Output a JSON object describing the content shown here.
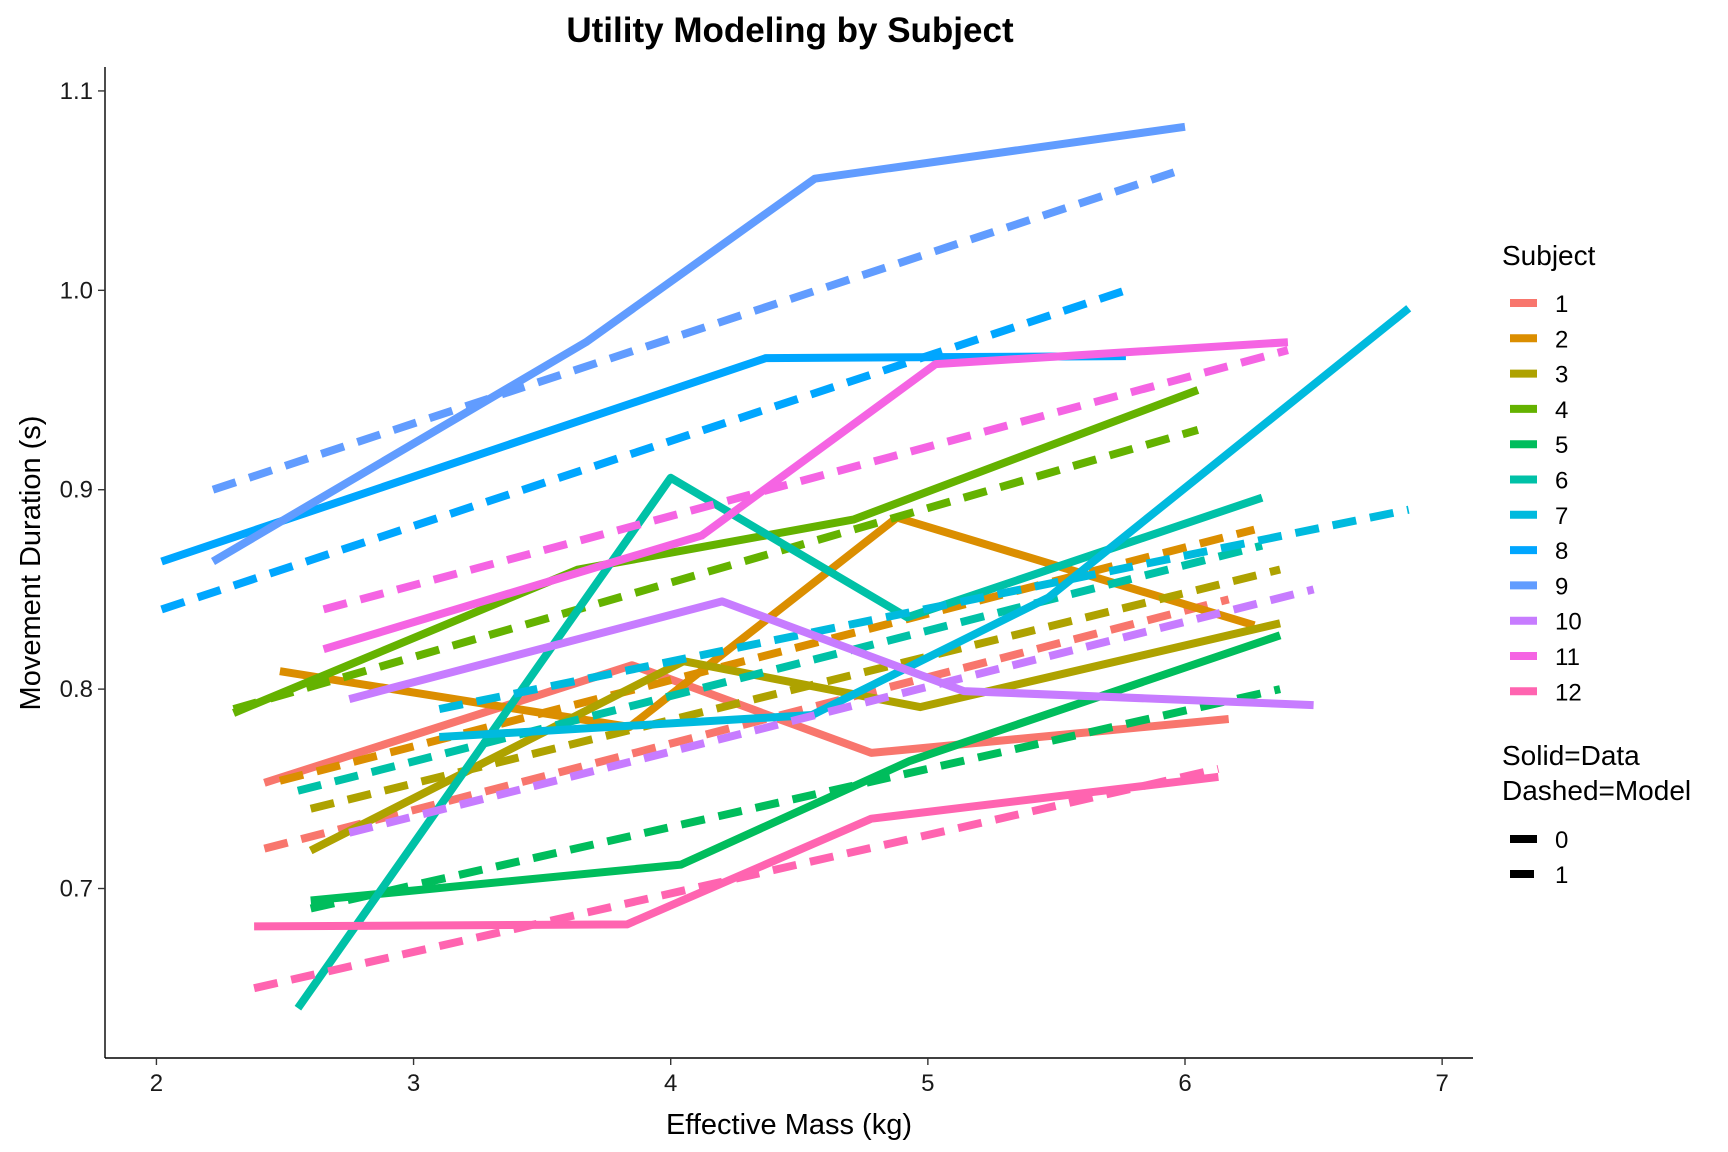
{
  "chart_data": {
    "type": "line",
    "title": "Utility Modeling by Subject",
    "xlabel": "Effective Mass (kg)",
    "ylabel": "Movement Duration (s)",
    "xlim": [
      1.8,
      7.12
    ],
    "ylim": [
      0.615,
      1.112
    ],
    "x_ticks": [
      2,
      3,
      4,
      5,
      6,
      7
    ],
    "y_ticks": [
      0.7,
      0.8,
      0.9,
      1.0,
      1.1
    ],
    "x_tick_labels": [
      "2",
      "3",
      "4",
      "5",
      "6",
      "7"
    ],
    "y_tick_labels": [
      "0.7",
      "0.8",
      "0.9",
      "1.0",
      "1.1"
    ],
    "grid": false,
    "legend": {
      "position": "right",
      "color_title": "Subject",
      "linetype_title_line1": "Solid=Data",
      "linetype_title_line2": "Dashed=Model",
      "linetype_labels": [
        "0",
        "1"
      ]
    },
    "series": [
      {
        "name": "1",
        "color": "#F8766D",
        "data": {
          "x": [
            2.42,
            3.85,
            4.78,
            6.17
          ],
          "y": [
            0.753,
            0.812,
            0.768,
            0.785
          ]
        },
        "model": {
          "x": [
            2.42,
            6.17
          ],
          "y": [
            0.72,
            0.845
          ]
        }
      },
      {
        "name": "2",
        "color": "#DB8E00",
        "data": {
          "x": [
            2.48,
            3.84,
            4.88,
            6.27
          ],
          "y": [
            0.809,
            0.781,
            0.886,
            0.832
          ]
        },
        "model": {
          "x": [
            2.48,
            6.27
          ],
          "y": [
            0.754,
            0.88
          ]
        }
      },
      {
        "name": "3",
        "color": "#AEA200",
        "data": {
          "x": [
            2.6,
            4.05,
            4.97,
            6.37
          ],
          "y": [
            0.719,
            0.814,
            0.791,
            0.833
          ]
        },
        "model": {
          "x": [
            2.6,
            6.37
          ],
          "y": [
            0.74,
            0.86
          ]
        }
      },
      {
        "name": "4",
        "color": "#64B200",
        "data": {
          "x": [
            2.3,
            3.64,
            4.71,
            6.05
          ],
          "y": [
            0.788,
            0.86,
            0.885,
            0.95
          ]
        },
        "model": {
          "x": [
            2.3,
            6.05
          ],
          "y": [
            0.79,
            0.93
          ]
        }
      },
      {
        "name": "5",
        "color": "#00BD5C",
        "data": {
          "x": [
            2.6,
            4.04,
            4.93,
            6.37
          ],
          "y": [
            0.694,
            0.712,
            0.764,
            0.827
          ]
        },
        "model": {
          "x": [
            2.6,
            6.37
          ],
          "y": [
            0.69,
            0.8
          ]
        }
      },
      {
        "name": "6",
        "color": "#00C1A7",
        "data": {
          "x": [
            2.55,
            4.0,
            4.92,
            6.3
          ],
          "y": [
            0.64,
            0.906,
            0.836,
            0.896
          ]
        },
        "model": {
          "x": [
            2.55,
            6.3
          ],
          "y": [
            0.749,
            0.872
          ]
        }
      },
      {
        "name": "7",
        "color": "#00BADE",
        "data": {
          "x": [
            3.1,
            4.55,
            5.47,
            6.87
          ],
          "y": [
            0.776,
            0.787,
            0.846,
            0.991
          ]
        },
        "model": {
          "x": [
            3.1,
            6.87
          ],
          "y": [
            0.79,
            0.89
          ]
        }
      },
      {
        "name": "8",
        "color": "#00A6FF",
        "data": {
          "x": [
            2.02,
            4.37,
            5.77
          ],
          "y": [
            0.864,
            0.966,
            0.967
          ]
        },
        "model": {
          "x": [
            2.02,
            5.77
          ],
          "y": [
            0.84,
            1.0
          ]
        }
      },
      {
        "name": "9",
        "color": "#619CFF",
        "data": {
          "x": [
            2.22,
            3.67,
            4.56,
            6.0
          ],
          "y": [
            0.864,
            0.974,
            1.056,
            1.082
          ]
        },
        "model": {
          "x": [
            2.22,
            6.0
          ],
          "y": [
            0.9,
            1.061
          ]
        }
      },
      {
        "name": "10",
        "color": "#C77CFF",
        "data": {
          "x": [
            2.75,
            4.2,
            5.14,
            6.5
          ],
          "y": [
            0.795,
            0.844,
            0.799,
            0.792
          ]
        },
        "model": {
          "x": [
            2.75,
            6.5
          ],
          "y": [
            0.728,
            0.85
          ]
        }
      },
      {
        "name": "11",
        "color": "#F564E3",
        "data": {
          "x": [
            2.65,
            4.12,
            5.03,
            6.4
          ],
          "y": [
            0.82,
            0.877,
            0.963,
            0.974
          ]
        },
        "model": {
          "x": [
            2.65,
            6.4
          ],
          "y": [
            0.84,
            0.97
          ]
        }
      },
      {
        "name": "12",
        "color": "#FF64B0",
        "data": {
          "x": [
            2.38,
            3.83,
            4.78,
            6.13
          ],
          "y": [
            0.681,
            0.682,
            0.735,
            0.756
          ]
        },
        "model": {
          "x": [
            2.38,
            6.13
          ],
          "y": [
            0.65,
            0.76
          ]
        }
      }
    ]
  }
}
